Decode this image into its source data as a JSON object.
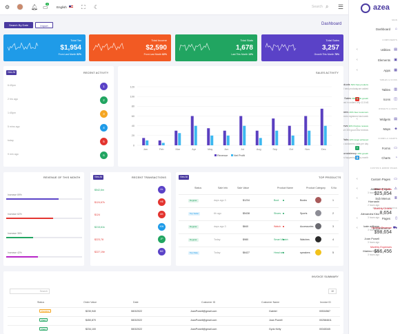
{
  "topbar": {
    "language": "English",
    "notification_count": "3",
    "search_placeholder": "Search"
  },
  "brand": {
    "name": "azea"
  },
  "sidebar": {
    "sections": [
      {
        "label": "MAIN",
        "items": [
          {
            "label": "Dashboard"
          }
        ]
      },
      {
        "label": "COMPONENTS",
        "items": [
          {
            "label": "Utilities"
          },
          {
            "label": "Elements"
          },
          {
            "label": "Apps"
          }
        ]
      },
      {
        "label": "TABLES & ICONS",
        "items": [
          {
            "label": "Tables"
          },
          {
            "label": "Icons"
          }
        ]
      },
      {
        "label": "WIDGETS & MAPS",
        "items": [
          {
            "label": "Widgets"
          },
          {
            "label": "Maps"
          }
        ]
      },
      {
        "label": "FORMS & CHARTS",
        "items": [
          {
            "label": "Forms"
          },
          {
            "label": "Charts"
          }
        ]
      },
      {
        "label": "CUSTOM & ERROR PAGES",
        "items": [
          {
            "label": "Custom Pages"
          },
          {
            "label": "Error Pages"
          },
          {
            "label": "Sub Menus"
          }
        ]
      },
      {
        "label": "PAGES & E-COMMERCE",
        "items": [
          {
            "label": "Pages"
          },
          {
            "label": "E-Commerce"
          }
        ]
      }
    ]
  },
  "toolbar": {
    "search_by_date": "Search By Date",
    "import": "Import",
    "page_title": "Dashboard"
  },
  "cards": [
    {
      "label": "Total Tax",
      "value": "$1,954",
      "sub": "From Last Month",
      "pct": "52%",
      "color": "#1f9be8"
    },
    {
      "label": "Total Income",
      "value": "$2,590",
      "sub": "From Last Month",
      "pct": "82%",
      "color": "#f25a23"
    },
    {
      "label": "Total Stats",
      "value": "1,678",
      "sub": "Last This Month",
      "pct": "13%",
      "color": "#21a561"
    },
    {
      "label": "Total Sales",
      "value": "3,257",
      "sub": "Growth This Month",
      "pct": "78%",
      "color": "#5a42c7"
    }
  ],
  "recent_activity": {
    "title": "RECENT ACTIVITY",
    "view_all": "View All",
    "items": [
      {
        "time": "6:45pm",
        "title": "New Products",
        "tag": "52% New products",
        "desc": "More than 100 new products are added",
        "num": "1",
        "color": "#5a42c7"
      },
      {
        "time": "2 hrs ago",
        "title": "New Sales",
        "tag": "58% Profit growth",
        "desc": "Income earned in dollars only 12,5 k$",
        "num": "2",
        "color": "#21a561"
      },
      {
        "time": "1:45pm",
        "title": "New Customers",
        "tag": "29% New customers",
        "desc": "1,3k new customers registered last week",
        "num": "3",
        "color": "#f5a623"
      },
      {
        "time": "5 mins ago",
        "title": "New Reviews",
        "tag": "90% Positive reviews",
        "desc": "There are 300 good new reviews",
        "num": "4",
        "color": "#1f9be8"
      },
      {
        "time": "today",
        "title": "Customer Visits",
        "tag": "22% target achieved",
        "desc": "Only 10 plus new customers visits per day",
        "num": "5",
        "color": "#e3342f"
      },
      {
        "time": "9 min ago",
        "title": "Sales Consistency",
        "tag": "30% growth",
        "desc": "More than 3 days happening every month",
        "num": "6",
        "color": "#21a561"
      }
    ]
  },
  "chart_data": {
    "type": "bar",
    "title": "SALES ACTIVITY",
    "categories": [
      "Jan",
      "Feb",
      "Mar",
      "Apr",
      "May",
      "Jun",
      "Jul",
      "Aug",
      "Sep",
      "Oct",
      "Nov",
      "Dec"
    ],
    "series": [
      {
        "name": "Revenue",
        "color": "#5a3fc0",
        "values": [
          15,
          10,
          30,
          60,
          35,
          30,
          60,
          30,
          55,
          40,
          60,
          75
        ]
      },
      {
        "name": "Net Profit",
        "color": "#3db8f0",
        "values": [
          10,
          5,
          25,
          40,
          20,
          20,
          40,
          15,
          30,
          20,
          30,
          40
        ]
      }
    ],
    "ylim": [
      0,
      120
    ],
    "yticks": [
      "0",
      "20",
      "40",
      "60",
      "80",
      "100",
      "120"
    ],
    "legend": "bottom"
  },
  "revenue": {
    "title": "REVENUE OF THIS MONTH",
    "items": [
      {
        "label": "Monthly Profits",
        "growth": "Increase 69%",
        "value": "$25,854",
        "color": "#5a42c7",
        "pct": 0.69
      },
      {
        "label": "Monthly Orders",
        "growth": "Increase 62%",
        "value": "8,654",
        "color": "#e3342f",
        "pct": 0.62
      },
      {
        "label": "Monthly Revenue",
        "growth": "Increase 35%",
        "value": "$98,654",
        "color": "#21a561",
        "pct": 0.35
      },
      {
        "label": "Monthly Expenses",
        "growth": "Increase 42%",
        "value": "$56,456",
        "color": "#b623c7",
        "pct": 0.42
      }
    ]
  },
  "transactions": {
    "title": "RECENT TRANSACTIONS",
    "view_all": "View All",
    "items": [
      {
        "amount": "$542,6m",
        "name": "Alberto",
        "time": "3 hours ago",
        "initials": "AL",
        "color": "#5a42c7",
        "amt_color": "#21a561"
      },
      {
        "amount": "$124,67k",
        "name": "Hornashi",
        "time": "2 hours ago",
        "initials": "HE",
        "color": "#e3342f",
        "amt_color": "#e3342f"
      },
      {
        "amount": "$124",
        "name": "Alexandra Kiko",
        "time": "3 hours ago",
        "initials": "AK",
        "color": "#e3342f",
        "amt_color": "#e3342f"
      },
      {
        "amount": "$215,61k",
        "name": "kate williams",
        "time": "3 hours ago",
        "initials": "KW",
        "color": "#1f9be8",
        "amt_color": "#21a561"
      },
      {
        "amount": "$223,78",
        "name": "Joan Powell",
        "time": "3 hours ago",
        "initials": "JP",
        "color": "#21a561",
        "amt_color": "#e3342f"
      },
      {
        "amount": "$227,19e",
        "name": "Makino Chen",
        "time": "3 hours ago",
        "initials": "MC",
        "color": "#5a42c7",
        "amt_color": "#e3342f"
      }
    ]
  },
  "top_products": {
    "title": "TOP PRODUCTS",
    "view_all": "View All",
    "headers": [
      "Status",
      "Sale Info",
      "Sale Value",
      "Product Name",
      "Product Category",
      "S.No"
    ],
    "rows": [
      {
        "status": "Regular",
        "info": "days ago 3",
        "value": "$1234",
        "name": "Boot",
        "category": "Books",
        "sno": "1",
        "status_color": "#21a561",
        "name_color": "#21a561",
        "img": "#a85a5a"
      },
      {
        "status": "Top Seller",
        "info": "6h ago",
        "value": "$5438",
        "name": "Shoes",
        "category": "Sports",
        "sno": "2",
        "status_color": "#1f9be8",
        "name_color": "#21a561",
        "img": "#8c8c95"
      },
      {
        "status": "Regular",
        "info": "days ago 3",
        "value": "$840",
        "name": "Watch",
        "category": "Accessories",
        "sno": "3",
        "status_color": "#21a561",
        "name_color": "#e3342f",
        "img": "#6a6a70"
      },
      {
        "status": "Regular",
        "info": "Today",
        "value": "$980",
        "name": "Smart Watch",
        "category": "Watches",
        "sno": "4",
        "status_color": "#21a561",
        "name_color": "#21a561",
        "img": "#2a2a2a"
      },
      {
        "status": "Top Rate",
        "info": "Today",
        "value": "$6427",
        "name": "Head set",
        "category": "speakers",
        "sno": "5",
        "status_color": "#1f9be8",
        "name_color": "#21a561",
        "img": "#f2c21b"
      }
    ]
  },
  "invoice": {
    "title": "INVOICE SUMMARY",
    "search_placeholder": "Search",
    "page_size": "10",
    "headers": [
      "Status",
      "Order Value",
      "Date",
      "Customer ID",
      "Customer Name",
      "Invoice ID"
    ],
    "rows": [
      {
        "status": "Pending",
        "value": "$230,940",
        "date": "08/3/2022",
        "email": "JoanPowell@gmail.com",
        "name": "Gabriel",
        "id": "00534567",
        "status_color": "#f5a623"
      },
      {
        "status": "Paid",
        "value": "$450,870",
        "date": "08/3/2022",
        "email": "JoanPowell@gmail.com",
        "name": "Joan Powell",
        "id": "002584611",
        "status_color": "#21a561"
      },
      {
        "status": "Paid",
        "value": "$234,100",
        "date": "08/3/2022",
        "email": "JoanPowell@gmail.com",
        "name": "Gydo Kelly",
        "id": "00345345",
        "status_color": "#21a561"
      }
    ]
  }
}
